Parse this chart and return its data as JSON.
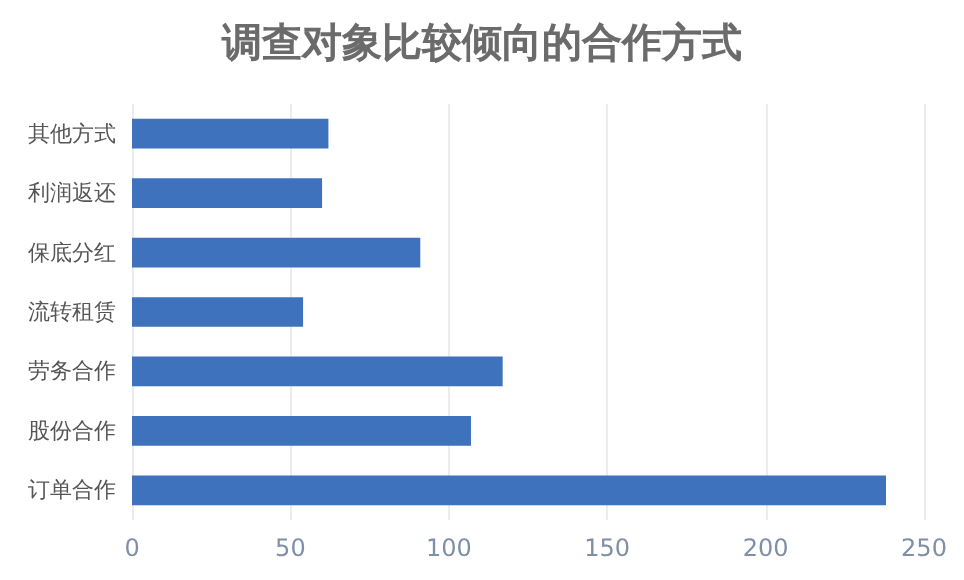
{
  "chart_data": {
    "type": "bar",
    "title": "调查对象比较倾向的合作方式",
    "orientation": "horizontal",
    "categories": [
      "其他方式",
      "利润返还",
      "保底分红",
      "流转租赁",
      "劳务合作",
      "股份合作",
      "订单合作"
    ],
    "values": [
      62,
      60,
      91,
      54,
      117,
      107,
      238
    ],
    "color": "#3f72bc",
    "xlim": [
      0,
      250
    ],
    "xticks": [
      0,
      50,
      100,
      150,
      200,
      250
    ],
    "grid": "x"
  }
}
